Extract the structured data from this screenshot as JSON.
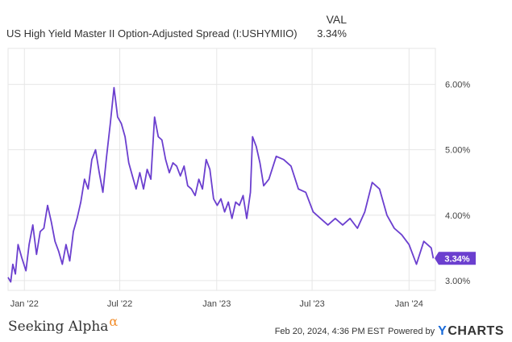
{
  "header": {
    "value_heading": "VAL",
    "series_label": "US High Yield Master II Option-Adjusted Spread (I:USHYMIIO)",
    "series_value": "3.34%"
  },
  "footer": {
    "brand": "Seeking Alpha",
    "brand_symbol": "α",
    "timestamp": "Feb 20, 2024, 4:36 PM EST",
    "powered_by": "Powered by",
    "provider_mark": "Y",
    "provider_name": "CHARTS"
  },
  "chart_data": {
    "type": "line",
    "title": "",
    "xlabel": "",
    "ylabel": "",
    "x_tick_labels": [
      "Jan '22",
      "Jul '22",
      "Jan '23",
      "Jul '23",
      "Jan '24"
    ],
    "x_ticks": [
      "2022-01-01",
      "2022-07-01",
      "2023-01-01",
      "2023-07-01",
      "2024-01-01"
    ],
    "y_tick_labels": [
      "3.00%",
      "4.00%",
      "5.00%",
      "6.00%"
    ],
    "y_ticks": [
      3.0,
      4.0,
      5.0,
      6.0
    ],
    "ylim": [
      2.85,
      6.55
    ],
    "xlim": [
      "2021-12-01",
      "2024-02-20"
    ],
    "grid": true,
    "line_color": "#6b3fcf",
    "last_value_label": "3.34%",
    "series": [
      {
        "x": [
          "2021-12-01",
          "2021-12-06",
          "2021-12-10",
          "2021-12-15",
          "2021-12-20",
          "2021-12-27",
          "2022-01-04",
          "2022-01-10",
          "2022-01-17",
          "2022-01-24",
          "2022-01-31",
          "2022-02-07",
          "2022-02-14",
          "2022-02-21",
          "2022-02-28",
          "2022-03-07",
          "2022-03-14",
          "2022-03-21",
          "2022-03-28",
          "2022-04-04",
          "2022-04-11",
          "2022-04-18",
          "2022-04-25",
          "2022-05-02",
          "2022-05-09",
          "2022-05-16",
          "2022-05-23",
          "2022-05-30",
          "2022-06-06",
          "2022-06-13",
          "2022-06-20",
          "2022-06-27",
          "2022-07-04",
          "2022-07-11",
          "2022-07-18",
          "2022-07-25",
          "2022-08-01",
          "2022-08-08",
          "2022-08-15",
          "2022-08-22",
          "2022-08-29",
          "2022-09-05",
          "2022-09-12",
          "2022-09-19",
          "2022-09-26",
          "2022-10-03",
          "2022-10-10",
          "2022-10-17",
          "2022-10-24",
          "2022-10-31",
          "2022-11-07",
          "2022-11-14",
          "2022-11-21",
          "2022-11-28",
          "2022-12-05",
          "2022-12-12",
          "2022-12-19",
          "2022-12-26",
          "2023-01-02",
          "2023-01-09",
          "2023-01-16",
          "2023-01-23",
          "2023-01-30",
          "2023-02-06",
          "2023-02-13",
          "2023-02-20",
          "2023-02-27",
          "2023-03-06",
          "2023-03-10",
          "2023-03-17",
          "2023-03-24",
          "2023-03-31",
          "2023-04-10",
          "2023-04-24",
          "2023-05-08",
          "2023-05-22",
          "2023-06-05",
          "2023-06-19",
          "2023-07-03",
          "2023-07-17",
          "2023-07-31",
          "2023-08-14",
          "2023-08-28",
          "2023-09-11",
          "2023-09-25",
          "2023-10-09",
          "2023-10-23",
          "2023-11-06",
          "2023-11-20",
          "2023-12-04",
          "2023-12-18",
          "2024-01-01",
          "2024-01-15",
          "2024-01-29",
          "2024-02-12",
          "2024-02-16"
        ],
        "y": [
          3.05,
          2.98,
          3.25,
          3.1,
          3.55,
          3.35,
          3.15,
          3.55,
          3.85,
          3.4,
          3.75,
          3.8,
          4.15,
          3.9,
          3.6,
          3.45,
          3.25,
          3.55,
          3.3,
          3.75,
          3.95,
          4.2,
          4.55,
          4.4,
          4.85,
          5.0,
          4.65,
          4.35,
          4.9,
          5.4,
          5.95,
          5.5,
          5.4,
          5.2,
          4.8,
          4.6,
          4.4,
          4.65,
          4.4,
          4.7,
          4.55,
          5.5,
          5.2,
          5.15,
          4.85,
          4.65,
          4.8,
          4.75,
          4.6,
          4.75,
          4.45,
          4.4,
          4.3,
          4.55,
          4.4,
          4.85,
          4.7,
          4.25,
          4.15,
          4.25,
          4.05,
          4.2,
          3.95,
          4.2,
          4.15,
          4.3,
          3.95,
          4.35,
          5.2,
          5.05,
          4.8,
          4.45,
          4.55,
          4.9,
          4.85,
          4.75,
          4.4,
          4.35,
          4.05,
          3.95,
          3.85,
          3.95,
          3.85,
          3.95,
          3.8,
          4.05,
          4.5,
          4.4,
          4.0,
          3.8,
          3.7,
          3.55,
          3.25,
          3.6,
          3.5,
          3.34
        ]
      }
    ]
  }
}
